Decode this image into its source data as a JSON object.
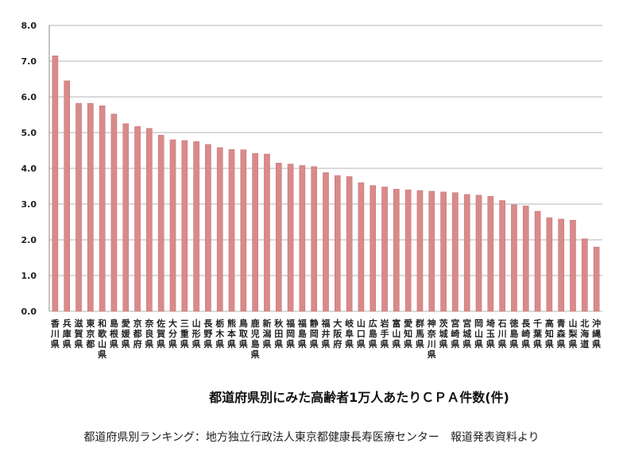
{
  "chart_data": {
    "type": "bar",
    "title": "都道府県別にみた高齢者1万人あたりＣＰＡ件数(件)",
    "xlabel": "",
    "ylabel": "",
    "ylim": [
      0,
      8
    ],
    "yticks": [
      "0.0",
      "1.0",
      "2.0",
      "3.0",
      "4.0",
      "5.0",
      "6.0",
      "7.0",
      "8.0"
    ],
    "grid": true,
    "bar_color": "#d98a8a",
    "categories": [
      "香川県",
      "兵庫県",
      "滋賀県",
      "東京都",
      "和歌山県",
      "島根県",
      "愛媛県",
      "京都府",
      "奈良県",
      "佐賀県",
      "大分県",
      "三重県",
      "山形県",
      "長野県",
      "栃木県",
      "熊本県",
      "鳥取県",
      "鹿児島県",
      "新潟県",
      "秋田県",
      "福岡県",
      "福島県",
      "静岡県",
      "福井県",
      "大阪府",
      "岐阜県",
      "山口県",
      "広島県",
      "岩手県",
      "富山県",
      "愛知県",
      "群馬県",
      "神奈川県",
      "茨城県",
      "宮崎県",
      "宮城県",
      "岡山県",
      "埼玉県",
      "石川県",
      "徳島県",
      "長崎県",
      "千葉県",
      "高知県",
      "青森県",
      "山梨県",
      "北海道",
      "沖縄県"
    ],
    "values": [
      7.15,
      6.45,
      5.82,
      5.82,
      5.75,
      5.52,
      5.25,
      5.17,
      5.12,
      4.93,
      4.8,
      4.78,
      4.75,
      4.67,
      4.58,
      4.53,
      4.52,
      4.42,
      4.4,
      4.15,
      4.12,
      4.08,
      4.05,
      3.88,
      3.8,
      3.77,
      3.6,
      3.52,
      3.48,
      3.42,
      3.4,
      3.38,
      3.36,
      3.34,
      3.32,
      3.27,
      3.25,
      3.22,
      3.1,
      2.98,
      2.95,
      2.8,
      2.62,
      2.58,
      2.55,
      2.03,
      1.8
    ]
  },
  "caption": "都道府県別ランキング：地方独立行政法人東京都健康長寿医療センター　報道発表資料より"
}
